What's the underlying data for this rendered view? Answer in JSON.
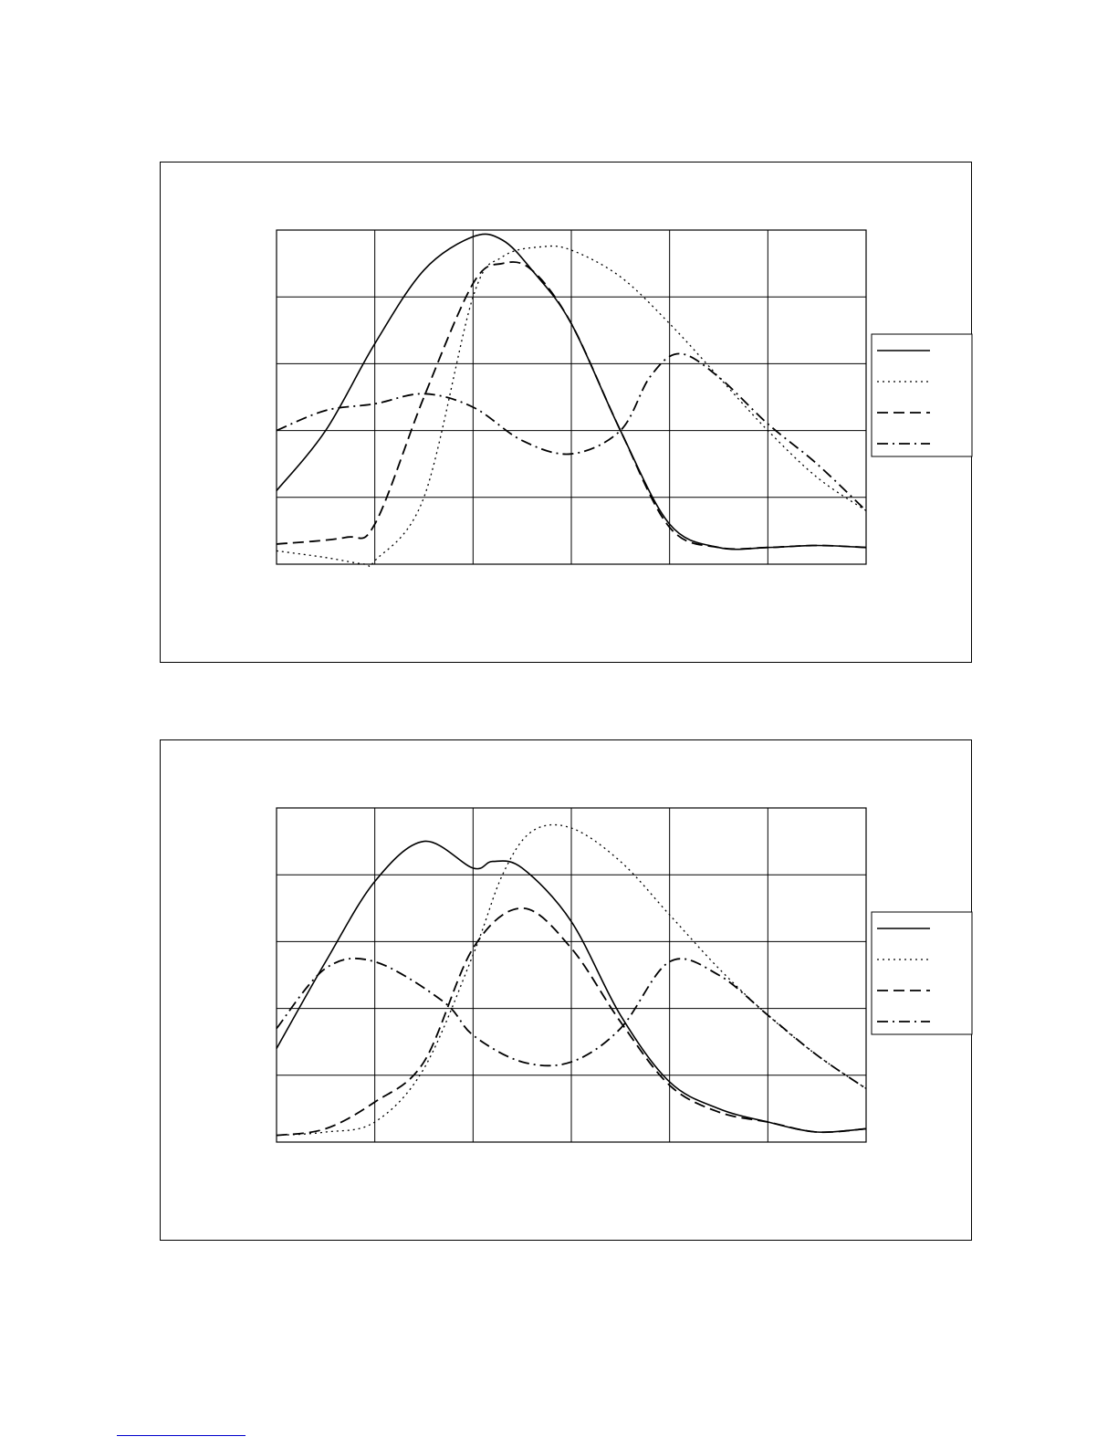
{
  "chart_data": [
    {
      "type": "line",
      "xlim": [
        0,
        6
      ],
      "ylim": [
        0,
        5
      ],
      "x_gridlines": 6,
      "y_gridlines": 5,
      "grid": true,
      "legend": "right",
      "series": [
        {
          "style": "solid",
          "points": [
            [
              0,
              1.1
            ],
            [
              0.5,
              2
            ],
            [
              1,
              3.3
            ],
            [
              1.5,
              4.4
            ],
            [
              2,
              4.9
            ],
            [
              2.3,
              4.85
            ],
            [
              2.6,
              4.4
            ],
            [
              3,
              3.6
            ],
            [
              3.5,
              2
            ],
            [
              4,
              0.6
            ],
            [
              4.5,
              0.25
            ],
            [
              5,
              0.25
            ],
            [
              5.5,
              0.28
            ],
            [
              6,
              0.25
            ]
          ]
        },
        {
          "style": "dotted",
          "points": [
            [
              0,
              0.2
            ],
            [
              0.5,
              0.1
            ],
            [
              0.9,
              0
            ],
            [
              1,
              0.05
            ],
            [
              1.5,
              1
            ],
            [
              2,
              4
            ],
            [
              2.3,
              4.6
            ],
            [
              2.7,
              4.75
            ],
            [
              3,
              4.7
            ],
            [
              3.5,
              4.3
            ],
            [
              4,
              3.6
            ],
            [
              4.5,
              2.8
            ],
            [
              5,
              2
            ],
            [
              5.5,
              1.3
            ],
            [
              6,
              0.8
            ]
          ]
        },
        {
          "style": "dashed",
          "points": [
            [
              0,
              0.3
            ],
            [
              0.7,
              0.4
            ],
            [
              1,
              0.6
            ],
            [
              1.5,
              2.5
            ],
            [
              2,
              4.2
            ],
            [
              2.3,
              4.5
            ],
            [
              2.6,
              4.4
            ],
            [
              3,
              3.6
            ],
            [
              3.5,
              2
            ],
            [
              4,
              0.55
            ],
            [
              4.5,
              0.25
            ],
            [
              5,
              0.25
            ],
            [
              5.5,
              0.28
            ],
            [
              6,
              0.25
            ]
          ]
        },
        {
          "style": "dash-dot",
          "points": [
            [
              0,
              2
            ],
            [
              0.5,
              2.3
            ],
            [
              1,
              2.4
            ],
            [
              1.5,
              2.55
            ],
            [
              2,
              2.35
            ],
            [
              2.5,
              1.85
            ],
            [
              3,
              1.65
            ],
            [
              3.5,
              2
            ],
            [
              3.8,
              2.8
            ],
            [
              4.1,
              3.15
            ],
            [
              4.5,
              2.8
            ],
            [
              5,
              2.1
            ],
            [
              5.5,
              1.5
            ],
            [
              6,
              0.8
            ]
          ]
        }
      ]
    },
    {
      "type": "line",
      "xlim": [
        0,
        6
      ],
      "ylim": [
        0,
        5
      ],
      "x_gridlines": 6,
      "y_gridlines": 5,
      "grid": true,
      "legend": "right",
      "series": [
        {
          "style": "solid",
          "points": [
            [
              0,
              1.4
            ],
            [
              0.5,
              2.7
            ],
            [
              1,
              3.9
            ],
            [
              1.5,
              4.5
            ],
            [
              2,
              4.1
            ],
            [
              2.2,
              4.2
            ],
            [
              2.5,
              4.1
            ],
            [
              3,
              3.3
            ],
            [
              3.5,
              1.9
            ],
            [
              4,
              0.9
            ],
            [
              4.5,
              0.5
            ],
            [
              5,
              0.3
            ],
            [
              5.5,
              0.15
            ],
            [
              6,
              0.2
            ]
          ]
        },
        {
          "style": "dotted",
          "points": [
            [
              0,
              0.1
            ],
            [
              0.5,
              0.15
            ],
            [
              1,
              0.3
            ],
            [
              1.5,
              1.1
            ],
            [
              2,
              2.8
            ],
            [
              2.3,
              4
            ],
            [
              2.6,
              4.65
            ],
            [
              3,
              4.7
            ],
            [
              3.5,
              4.2
            ],
            [
              4,
              3.4
            ],
            [
              4.5,
              2.6
            ],
            [
              5,
              1.9
            ],
            [
              5.5,
              1.3
            ],
            [
              6,
              0.8
            ]
          ]
        },
        {
          "style": "dashed",
          "points": [
            [
              0,
              0.1
            ],
            [
              0.5,
              0.2
            ],
            [
              1,
              0.6
            ],
            [
              1.5,
              1.2
            ],
            [
              2,
              2.9
            ],
            [
              2.5,
              3.5
            ],
            [
              3,
              2.9
            ],
            [
              3.5,
              1.8
            ],
            [
              4,
              0.85
            ],
            [
              4.5,
              0.45
            ],
            [
              5,
              0.3
            ],
            [
              5.5,
              0.15
            ],
            [
              6,
              0.2
            ]
          ]
        },
        {
          "style": "dash-dot",
          "points": [
            [
              0,
              1.7
            ],
            [
              0.5,
              2.6
            ],
            [
              1,
              2.7
            ],
            [
              1.7,
              2.1
            ],
            [
              2,
              1.6
            ],
            [
              2.5,
              1.2
            ],
            [
              3,
              1.2
            ],
            [
              3.5,
              1.7
            ],
            [
              4,
              2.7
            ],
            [
              4.5,
              2.5
            ],
            [
              5,
              1.9
            ],
            [
              5.5,
              1.3
            ],
            [
              6,
              0.8
            ]
          ]
        }
      ]
    }
  ]
}
